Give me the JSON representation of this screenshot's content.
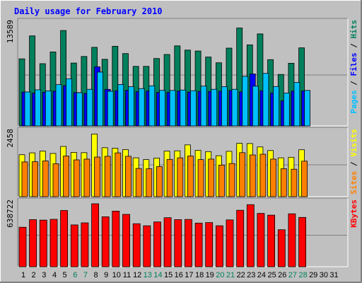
{
  "chart_data": {
    "type": "bar",
    "title": "Daily usage for February 2010",
    "categories": [
      "1",
      "2",
      "3",
      "4",
      "5",
      "6",
      "7",
      "8",
      "9",
      "10",
      "11",
      "12",
      "13",
      "14",
      "15",
      "16",
      "17",
      "18",
      "19",
      "20",
      "21",
      "22",
      "23",
      "24",
      "25",
      "26",
      "27",
      "28",
      "29",
      "30",
      "31"
    ],
    "weekend_days": [
      "6",
      "7",
      "13",
      "14",
      "20",
      "21",
      "27",
      "28"
    ],
    "panels": [
      {
        "id": "hits-panel",
        "ymax": 13589,
        "ymax_label": "13589",
        "grid": true,
        "legend": [
          "Pages",
          "Files",
          "Hits"
        ],
        "series": [
          {
            "name": "Hits",
            "color": "#00805c",
            "values": [
              8950,
              12010,
              8300,
              9870,
              12730,
              8390,
              9270,
              10480,
              8890,
              10630,
              9650,
              7950,
              7950,
              8990,
              9530,
              10680,
              10120,
              9990,
              9190,
              8430,
              10380,
              13060,
              10810,
              12280,
              8840,
              6870,
              8360,
              10420,
              0,
              0,
              0
            ]
          },
          {
            "name": "Files",
            "color": "#0000ff",
            "values": [
              4520,
              4370,
              4480,
              4640,
              5380,
              4450,
              4340,
              7890,
              4880,
              4700,
              4750,
              4570,
              4660,
              4470,
              4470,
              4660,
              4510,
              4610,
              4600,
              4620,
              4740,
              4550,
              6940,
              4690,
              4400,
              3340,
              4640,
              4660,
              0,
              0,
              0
            ]
          },
          {
            "name": "Pages",
            "color": "#00c0ff",
            "values": [
              4530,
              4820,
              4680,
              5510,
              6290,
              4440,
              4890,
              7180,
              4620,
              5530,
              5240,
              4980,
              5350,
              4750,
              4740,
              4790,
              4700,
              5310,
              4890,
              5250,
              4890,
              6610,
              5300,
              7010,
              5260,
              4390,
              5790,
              4740,
              0,
              0,
              0
            ]
          }
        ]
      },
      {
        "id": "visits-panel",
        "ymax": 2458,
        "ymax_label": "2458",
        "grid": true,
        "legend": [
          "Sites",
          "Visits"
        ],
        "series": [
          {
            "name": "Visits",
            "color": "#ffff00",
            "values": [
              1620,
              1690,
              1760,
              1670,
              1940,
              1710,
              1700,
              2420,
              1890,
              1870,
              1820,
              1500,
              1430,
              1490,
              1760,
              1770,
              2000,
              1790,
              1740,
              1580,
              1750,
              2060,
              2050,
              1920,
              1780,
              1500,
              1520,
              1810,
              0,
              0,
              0
            ]
          },
          {
            "name": "Sites",
            "color": "#ff8000",
            "values": [
              1340,
              1350,
              1380,
              1270,
              1570,
              1420,
              1450,
              1530,
              1560,
              1690,
              1560,
              1090,
              1080,
              1160,
              1440,
              1500,
              1570,
              1430,
              1450,
              1220,
              1280,
              1700,
              1610,
              1640,
              1450,
              1080,
              1060,
              1370,
              0,
              0,
              0
            ]
          }
        ]
      },
      {
        "id": "kbytes-panel",
        "ymax": 638722,
        "ymax_label": "638722",
        "grid": true,
        "legend": [
          "KBytes"
        ],
        "series": [
          {
            "name": "KBytes",
            "color": "#ff0000",
            "values": [
              400600,
              478200,
              473000,
              480600,
              570400,
              424000,
              445200,
              638700,
              506900,
              564100,
              530900,
              436500,
              415700,
              454400,
              497600,
              478200,
              479700,
              442600,
              447800,
              415600,
              475100,
              572600,
              629400,
              540800,
              523200,
              375000,
              536500,
              500300,
              0,
              0,
              0
            ]
          }
        ]
      }
    ]
  },
  "colors": {
    "background": "#c0c0c0",
    "panel_bg": "#c0c0c0",
    "title": "#0000ff",
    "weekday_label": "#000000",
    "weekend_label": "#00805c",
    "bar_border": "#000000"
  }
}
